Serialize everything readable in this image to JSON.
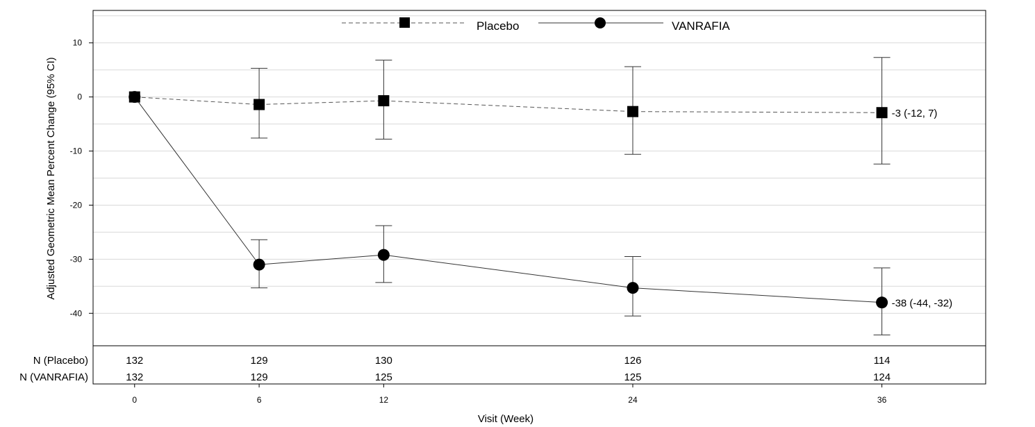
{
  "chart_data": {
    "type": "line",
    "title": "",
    "xlabel": "Visit (Week)",
    "ylabel": "Adjusted Geometric Mean Percent Change (95% CI)",
    "xlim": [
      -2,
      41
    ],
    "ylim": [
      -46,
      16
    ],
    "xticks": [
      0,
      6,
      12,
      24,
      36
    ],
    "xtick_labels": [
      "0",
      "6",
      "12",
      "24",
      "36"
    ],
    "yticks": [
      10,
      0,
      -10,
      -20,
      -30,
      -40
    ],
    "ytick_labels": [
      "10",
      "0",
      "-10",
      "-20",
      "-30",
      "-40"
    ],
    "grid_values": [
      15,
      10,
      5,
      0,
      -5,
      -10,
      -15,
      -20,
      -25,
      -30,
      -35,
      -40
    ],
    "legend_position": "top-center",
    "series": [
      {
        "name": "Placebo",
        "marker": "square",
        "line_style": "dashed",
        "line_color": "#555555",
        "x": [
          0,
          6,
          12,
          24,
          36
        ],
        "values": [
          0,
          -1.4,
          -0.7,
          -2.7,
          -2.9
        ],
        "ci_lower": [
          0,
          -7.6,
          -7.8,
          -10.6,
          -12.4
        ],
        "ci_upper": [
          0,
          5.3,
          6.8,
          5.6,
          7.3
        ],
        "end_label": "-3 (-12, 7)"
      },
      {
        "name": "VANRAFIA",
        "marker": "circle",
        "line_style": "solid",
        "line_color": "#333333",
        "x": [
          0,
          6,
          12,
          24,
          36
        ],
        "values": [
          0,
          -31.0,
          -29.2,
          -35.3,
          -38.0
        ],
        "ci_lower": [
          0,
          -35.3,
          -34.3,
          -40.5,
          -44.0
        ],
        "ci_upper": [
          0,
          -26.4,
          -23.8,
          -29.5,
          -31.6
        ],
        "end_label": "-38 (-44, -32)"
      }
    ],
    "risk_table": {
      "rows": [
        {
          "label": "N (Placebo)",
          "values": [
            "132",
            "129",
            "130",
            "126",
            "114"
          ]
        },
        {
          "label": "N (VANRAFIA)",
          "values": [
            "132",
            "129",
            "125",
            "125",
            "124"
          ]
        }
      ]
    }
  }
}
